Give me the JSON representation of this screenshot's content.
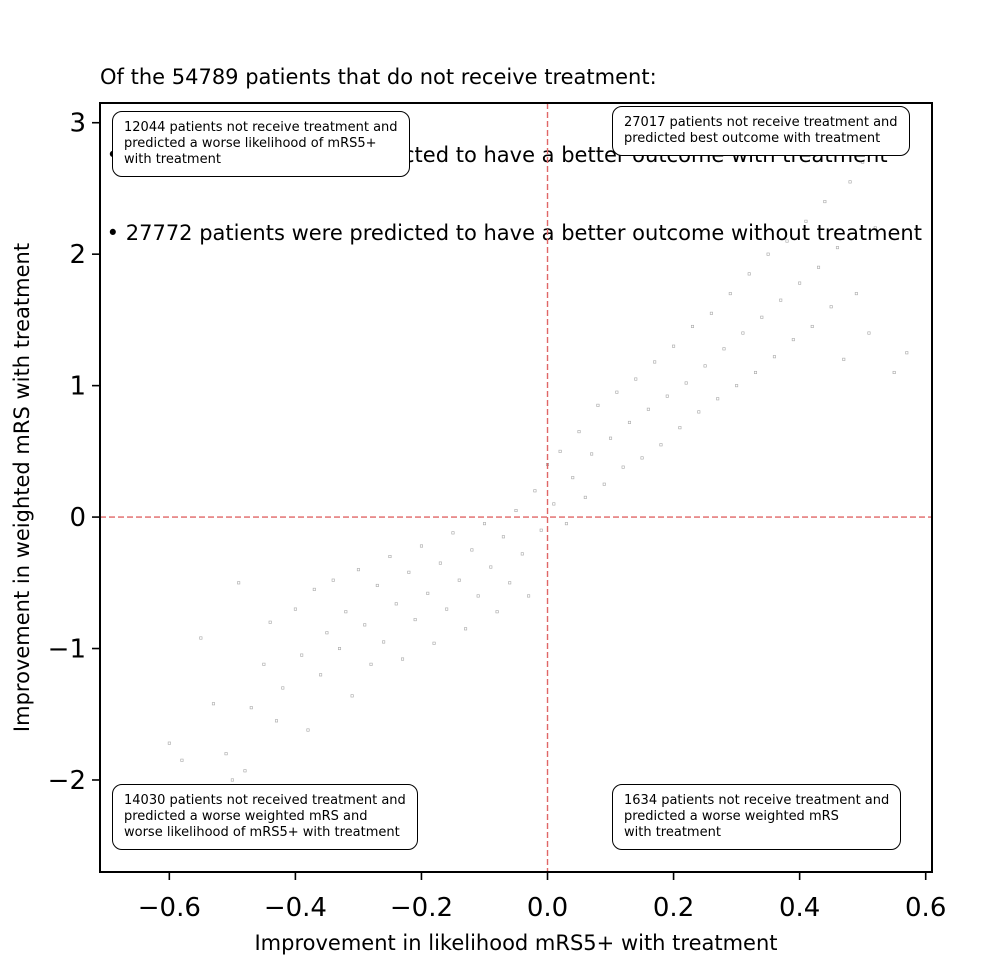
{
  "chart_data": {
    "type": "scatter",
    "title_lines": [
      "Of the 54789 patients that do not receive treatment:",
      " • 27017 patients were predicted to have a better outcome with treatment",
      " • 27772 patients were predicted to have a better outcome without treatment"
    ],
    "xlabel": "Improvement in likelihood mRS5+ with treatment",
    "ylabel": "Improvement in weighted mRS with treatment",
    "xlim": [
      -0.71,
      0.61
    ],
    "ylim": [
      -2.7,
      3.15
    ],
    "xticks": [
      -0.6,
      -0.4,
      -0.2,
      0.0,
      0.2,
      0.4,
      0.6
    ],
    "xtick_labels": [
      "−0.6",
      "−0.4",
      "−0.2",
      "0.0",
      "0.2",
      "0.4",
      "0.6"
    ],
    "yticks": [
      -2,
      -1,
      0,
      1,
      2,
      3
    ],
    "ytick_labels": [
      "−2",
      "−1",
      "0",
      "1",
      "2",
      "3"
    ],
    "reference_lines": {
      "x": 0,
      "y": 0,
      "color": "#e06666",
      "style": "dashed"
    },
    "grid": false,
    "point_color": "#000000",
    "annotations": {
      "top_left": "12044 patients not receive treatment and\npredicted a worse likelihood of mRS5+\nwith treatment",
      "top_right": "27017 patients not receive treatment and\npredicted best outcome with treatment",
      "bottom_left": "14030 patients not received treatment and\npredicted a worse weighted mRS and\nworse likelihood of mRS5+ with treatment",
      "bottom_right": "1634 patients not receive treatment and\npredicted a worse weighted mRS\nwith treatment"
    },
    "series": [
      {
        "points": [
          [
            -0.6,
            -1.72
          ],
          [
            -0.58,
            -1.85
          ],
          [
            -0.55,
            -0.92
          ],
          [
            -0.53,
            -1.42
          ],
          [
            -0.51,
            -1.8
          ],
          [
            -0.5,
            -2.0
          ],
          [
            -0.49,
            -0.5
          ],
          [
            -0.48,
            -1.93
          ],
          [
            -0.47,
            -1.45
          ],
          [
            -0.45,
            -1.12
          ],
          [
            -0.44,
            -0.8
          ],
          [
            -0.43,
            -1.55
          ],
          [
            -0.42,
            -1.3
          ],
          [
            -0.4,
            -0.7
          ],
          [
            -0.39,
            -1.05
          ],
          [
            -0.38,
            -1.62
          ],
          [
            -0.37,
            -0.55
          ],
          [
            -0.36,
            -1.2
          ],
          [
            -0.35,
            -0.88
          ],
          [
            -0.34,
            -0.48
          ],
          [
            -0.33,
            -1.0
          ],
          [
            -0.32,
            -0.72
          ],
          [
            -0.31,
            -1.36
          ],
          [
            -0.3,
            -0.4
          ],
          [
            -0.29,
            -0.82
          ],
          [
            -0.28,
            -1.12
          ],
          [
            -0.27,
            -0.52
          ],
          [
            -0.26,
            -0.95
          ],
          [
            -0.25,
            -0.3
          ],
          [
            -0.24,
            -0.66
          ],
          [
            -0.23,
            -1.08
          ],
          [
            -0.22,
            -0.42
          ],
          [
            -0.21,
            -0.78
          ],
          [
            -0.2,
            -0.22
          ],
          [
            -0.19,
            -0.58
          ],
          [
            -0.18,
            -0.96
          ],
          [
            -0.17,
            -0.35
          ],
          [
            -0.16,
            -0.7
          ],
          [
            -0.15,
            -0.12
          ],
          [
            -0.14,
            -0.48
          ],
          [
            -0.13,
            -0.85
          ],
          [
            -0.12,
            -0.25
          ],
          [
            -0.11,
            -0.6
          ],
          [
            -0.1,
            -0.05
          ],
          [
            -0.09,
            -0.38
          ],
          [
            -0.08,
            -0.72
          ],
          [
            -0.07,
            -0.15
          ],
          [
            -0.06,
            -0.5
          ],
          [
            -0.05,
            0.05
          ],
          [
            -0.04,
            -0.28
          ],
          [
            -0.03,
            -0.6
          ],
          [
            -0.02,
            0.2
          ],
          [
            -0.01,
            -0.1
          ],
          [
            0.0,
            0.4
          ],
          [
            0.01,
            0.1
          ],
          [
            0.02,
            0.5
          ],
          [
            0.03,
            -0.05
          ],
          [
            0.04,
            0.3
          ],
          [
            0.05,
            0.65
          ],
          [
            0.06,
            0.15
          ],
          [
            0.07,
            0.48
          ],
          [
            0.08,
            0.85
          ],
          [
            0.09,
            0.25
          ],
          [
            0.1,
            0.6
          ],
          [
            0.11,
            0.95
          ],
          [
            0.12,
            0.38
          ],
          [
            0.13,
            0.72
          ],
          [
            0.14,
            1.05
          ],
          [
            0.15,
            0.45
          ],
          [
            0.16,
            0.82
          ],
          [
            0.17,
            1.18
          ],
          [
            0.18,
            0.55
          ],
          [
            0.19,
            0.92
          ],
          [
            0.2,
            1.3
          ],
          [
            0.21,
            0.68
          ],
          [
            0.22,
            1.02
          ],
          [
            0.23,
            1.45
          ],
          [
            0.24,
            0.8
          ],
          [
            0.25,
            1.15
          ],
          [
            0.26,
            1.55
          ],
          [
            0.27,
            0.9
          ],
          [
            0.28,
            1.28
          ],
          [
            0.29,
            1.7
          ],
          [
            0.3,
            1.0
          ],
          [
            0.31,
            1.4
          ],
          [
            0.32,
            1.85
          ],
          [
            0.33,
            1.1
          ],
          [
            0.34,
            1.52
          ],
          [
            0.35,
            2.0
          ],
          [
            0.36,
            1.22
          ],
          [
            0.37,
            1.65
          ],
          [
            0.38,
            2.1
          ],
          [
            0.39,
            1.35
          ],
          [
            0.4,
            1.78
          ],
          [
            0.41,
            2.25
          ],
          [
            0.42,
            1.45
          ],
          [
            0.43,
            1.9
          ],
          [
            0.44,
            2.4
          ],
          [
            0.45,
            1.6
          ],
          [
            0.46,
            2.05
          ],
          [
            0.47,
            1.2
          ],
          [
            0.48,
            2.55
          ],
          [
            0.49,
            1.7
          ],
          [
            0.5,
            2.7
          ],
          [
            0.51,
            1.4
          ],
          [
            0.52,
            2.2
          ],
          [
            0.55,
            1.1
          ],
          [
            0.57,
            1.25
          ]
        ]
      }
    ]
  }
}
